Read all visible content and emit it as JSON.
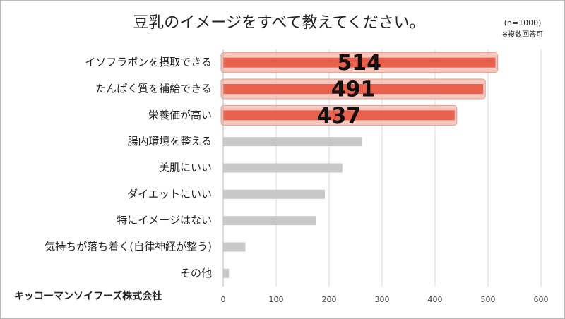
{
  "chart_data": {
    "type": "hbar",
    "title": "豆乳のイメージをすべて教えてください。",
    "annotations": [
      "(n=1000)",
      "※複数回答可"
    ],
    "source": "キッコーマンソイフーズ株式会社",
    "categories": [
      "イソフラボンを摂取できる",
      "たんぱく質を補給できる",
      "栄養価が高い",
      "腸内環境を整える",
      "美肌にいい",
      "ダイエットにいい",
      "特にイメージはない",
      "気持ちが落ち着く(自律神経が整う)",
      "その他"
    ],
    "values": [
      514,
      491,
      437,
      262,
      225,
      192,
      176,
      42,
      11
    ],
    "color": "#c8c8c8",
    "highlight": [
      0,
      1,
      2
    ],
    "highlight_color": "#e9604c",
    "xlim": [
      0,
      600
    ],
    "xticks": [
      0,
      100,
      200,
      300,
      400,
      500,
      600
    ],
    "grid": true
  }
}
